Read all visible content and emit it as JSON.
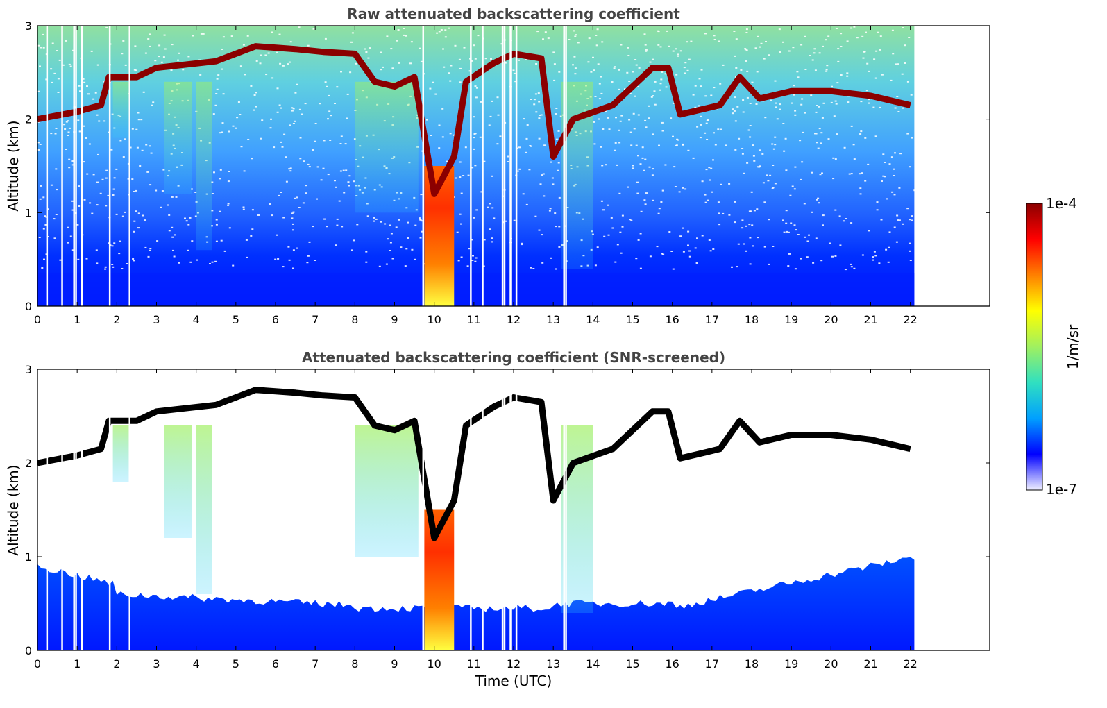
{
  "chart_data": [
    {
      "type": "heatmap",
      "title": "Raw attenuated backscattering coefficient",
      "xlabel": "",
      "ylabel": "Altitude (km)",
      "xlim": [
        0,
        24
      ],
      "ylim": [
        0,
        3
      ],
      "x_ticks": [
        "0",
        "1",
        "2",
        "3",
        "4",
        "5",
        "6",
        "7",
        "8",
        "9",
        "10",
        "11",
        "12",
        "13",
        "14",
        "15",
        "16",
        "17",
        "18",
        "19",
        "20",
        "21",
        "22"
      ],
      "y_ticks": [
        "0",
        "1",
        "2",
        "3"
      ],
      "data_extent_hours": 22.1,
      "cloud_layer_top_km": [
        {
          "t": 0.0,
          "alt": 2.0
        },
        {
          "t": 1.0,
          "alt": 2.08
        },
        {
          "t": 1.6,
          "alt": 2.15
        },
        {
          "t": 1.8,
          "alt": 2.45
        },
        {
          "t": 2.5,
          "alt": 2.45
        },
        {
          "t": 3.0,
          "alt": 2.55
        },
        {
          "t": 4.5,
          "alt": 2.62
        },
        {
          "t": 5.5,
          "alt": 2.78
        },
        {
          "t": 6.5,
          "alt": 2.75
        },
        {
          "t": 7.2,
          "alt": 2.72
        },
        {
          "t": 8.0,
          "alt": 2.7
        },
        {
          "t": 8.5,
          "alt": 2.4
        },
        {
          "t": 9.0,
          "alt": 2.35
        },
        {
          "t": 9.5,
          "alt": 2.45
        },
        {
          "t": 10.0,
          "alt": 1.2
        },
        {
          "t": 10.5,
          "alt": 1.6
        },
        {
          "t": 10.8,
          "alt": 2.4
        },
        {
          "t": 11.5,
          "alt": 2.6
        },
        {
          "t": 12.0,
          "alt": 2.7
        },
        {
          "t": 12.7,
          "alt": 2.65
        },
        {
          "t": 13.0,
          "alt": 1.6
        },
        {
          "t": 13.5,
          "alt": 2.0
        },
        {
          "t": 14.5,
          "alt": 2.15
        },
        {
          "t": 15.5,
          "alt": 2.55
        },
        {
          "t": 15.9,
          "alt": 2.55
        },
        {
          "t": 16.2,
          "alt": 2.05
        },
        {
          "t": 17.2,
          "alt": 2.15
        },
        {
          "t": 17.7,
          "alt": 2.45
        },
        {
          "t": 18.2,
          "alt": 2.22
        },
        {
          "t": 19.0,
          "alt": 2.3
        },
        {
          "t": 20.0,
          "alt": 2.3
        },
        {
          "t": 21.0,
          "alt": 2.25
        },
        {
          "t": 22.0,
          "alt": 2.15
        }
      ]
    },
    {
      "type": "heatmap",
      "title": "Attenuated backscattering coefficient (SNR-screened)",
      "xlabel": "Time (UTC)",
      "ylabel": "Altitude (km)",
      "xlim": [
        0,
        24
      ],
      "ylim": [
        0,
        3
      ],
      "x_ticks": [
        "0",
        "1",
        "2",
        "3",
        "4",
        "5",
        "6",
        "7",
        "8",
        "9",
        "10",
        "11",
        "12",
        "13",
        "14",
        "15",
        "16",
        "17",
        "18",
        "19",
        "20",
        "21",
        "22"
      ],
      "y_ticks": [
        "0",
        "1",
        "2",
        "3"
      ],
      "data_extent_hours": 22.1,
      "screened": true
    }
  ],
  "colorbar": {
    "label": "1/m/sr",
    "max_label": "1e-4",
    "min_label": "1e-7",
    "colormap": [
      "#f0f0ff",
      "#0000ff",
      "#00a0ff",
      "#30e0c0",
      "#a0f060",
      "#ffff00",
      "#ff8000",
      "#ff0000",
      "#8b0000"
    ]
  },
  "colors": {
    "background_noise_low": "#0022ff",
    "cloud_layer": "#8b0000",
    "screened_cloud_top": "#000000",
    "title_text": "#444444"
  }
}
